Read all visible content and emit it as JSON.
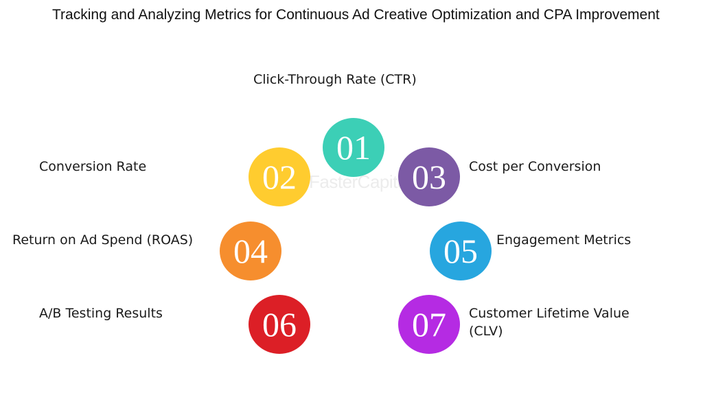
{
  "title": "Tracking and Analyzing Metrics for Continuous Ad Creative Optimization and CPA Improvement",
  "watermark": "FasterCapital",
  "items": [
    {
      "number": "01",
      "label": "Click-Through Rate (CTR)",
      "color": "#3ccfb6"
    },
    {
      "number": "02",
      "label": "Conversion Rate",
      "color": "#ffcc2f"
    },
    {
      "number": "03",
      "label": "Cost per Conversion",
      "color": "#7c5aa5"
    },
    {
      "number": "04",
      "label": "Return on Ad Spend (ROAS)",
      "color": "#f68e2e"
    },
    {
      "number": "05",
      "label": "Engagement Metrics",
      "color": "#27a6df"
    },
    {
      "number": "06",
      "label": "A/B Testing Results",
      "color": "#dc1f26"
    },
    {
      "number": "07",
      "label": "Customer Lifetime Value (CLV)",
      "color": "#b52be3"
    }
  ]
}
